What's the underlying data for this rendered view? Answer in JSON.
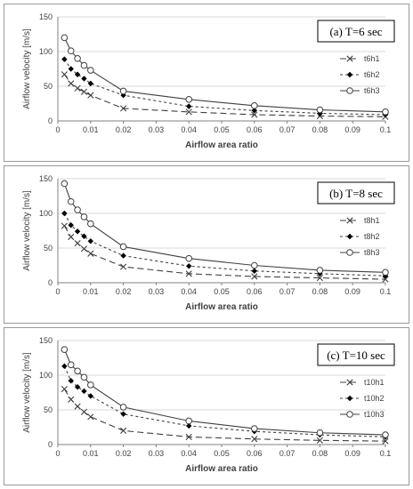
{
  "chart_data": [
    {
      "type": "line",
      "title": "(a) T=6 sec",
      "xlabel": "Airflow area ratio",
      "ylabel": "Airflow velocity [m/s]",
      "xlim": [
        0,
        0.1
      ],
      "ylim": [
        0,
        150
      ],
      "xticks": [
        "0",
        "0.01",
        "0.02",
        "0.03",
        "0.04",
        "0.05",
        "0.06",
        "0.07",
        "0.08",
        "0.09",
        "0.1"
      ],
      "yticks": [
        "0",
        "50",
        "100",
        "150"
      ],
      "x": [
        0.002,
        0.004,
        0.006,
        0.008,
        0.01,
        0.02,
        0.04,
        0.06,
        0.08,
        0.1
      ],
      "series": [
        {
          "name": "t6h1",
          "marker": "x",
          "dash": "dashed",
          "values": [
            67,
            54,
            47,
            42,
            37,
            18,
            13,
            9,
            7,
            6
          ]
        },
        {
          "name": "t6h2",
          "marker": "diamond",
          "dash": "dotted",
          "values": [
            89,
            75,
            67,
            61,
            54,
            37,
            21,
            15,
            11,
            9
          ]
        },
        {
          "name": "t6h3",
          "marker": "circle",
          "dash": "solid",
          "values": [
            120,
            101,
            90,
            80,
            73,
            43,
            31,
            22,
            16,
            13
          ]
        }
      ]
    },
    {
      "type": "line",
      "title": "(b) T=8 sec",
      "xlabel": "Airflow area ratio",
      "ylabel": "Airflow velocity [m/s]",
      "xlim": [
        0,
        0.1
      ],
      "ylim": [
        0,
        150
      ],
      "xticks": [
        "0",
        "0.01",
        "0.02",
        "0.03",
        "0.04",
        "0.05",
        "0.06",
        "0.07",
        "0.08",
        "0.09",
        "0.1"
      ],
      "yticks": [
        "0",
        "50",
        "100",
        "150"
      ],
      "x": [
        0.002,
        0.004,
        0.006,
        0.008,
        0.01,
        0.02,
        0.04,
        0.06,
        0.08,
        0.1
      ],
      "series": [
        {
          "name": "t8h1",
          "marker": "x",
          "dash": "dashed",
          "values": [
            82,
            66,
            57,
            49,
            42,
            23,
            13,
            9,
            7,
            5
          ]
        },
        {
          "name": "t8h2",
          "marker": "diamond",
          "dash": "dotted",
          "values": [
            100,
            83,
            74,
            67,
            60,
            39,
            24,
            17,
            13,
            10
          ]
        },
        {
          "name": "t8h3",
          "marker": "circle",
          "dash": "solid",
          "values": [
            143,
            117,
            105,
            95,
            85,
            52,
            35,
            25,
            18,
            15
          ]
        }
      ]
    },
    {
      "type": "line",
      "title": "(c) T=10 sec",
      "xlabel": "Airflow area ratio",
      "ylabel": "Airflow velocity [m/s]",
      "xlim": [
        0,
        0.1
      ],
      "ylim": [
        0,
        150
      ],
      "xticks": [
        "0",
        "0.01",
        "0.02",
        "0.03",
        "0.04",
        "0.05",
        "0.06",
        "0.07",
        "0.08",
        "0.09",
        "0.1"
      ],
      "yticks": [
        "0",
        "50",
        "100",
        "150"
      ],
      "x": [
        0.002,
        0.004,
        0.006,
        0.008,
        0.01,
        0.02,
        0.04,
        0.06,
        0.08,
        0.1
      ],
      "series": [
        {
          "name": "t10h1",
          "marker": "x",
          "dash": "dashed",
          "values": [
            80,
            65,
            55,
            47,
            40,
            20,
            11,
            8,
            6,
            5
          ]
        },
        {
          "name": "t10h2",
          "marker": "diamond",
          "dash": "dotted",
          "values": [
            113,
            92,
            83,
            77,
            70,
            44,
            27,
            19,
            14,
            11
          ]
        },
        {
          "name": "t10h3",
          "marker": "circle",
          "dash": "solid",
          "values": [
            137,
            115,
            106,
            97,
            86,
            54,
            34,
            23,
            17,
            14
          ]
        }
      ]
    }
  ]
}
